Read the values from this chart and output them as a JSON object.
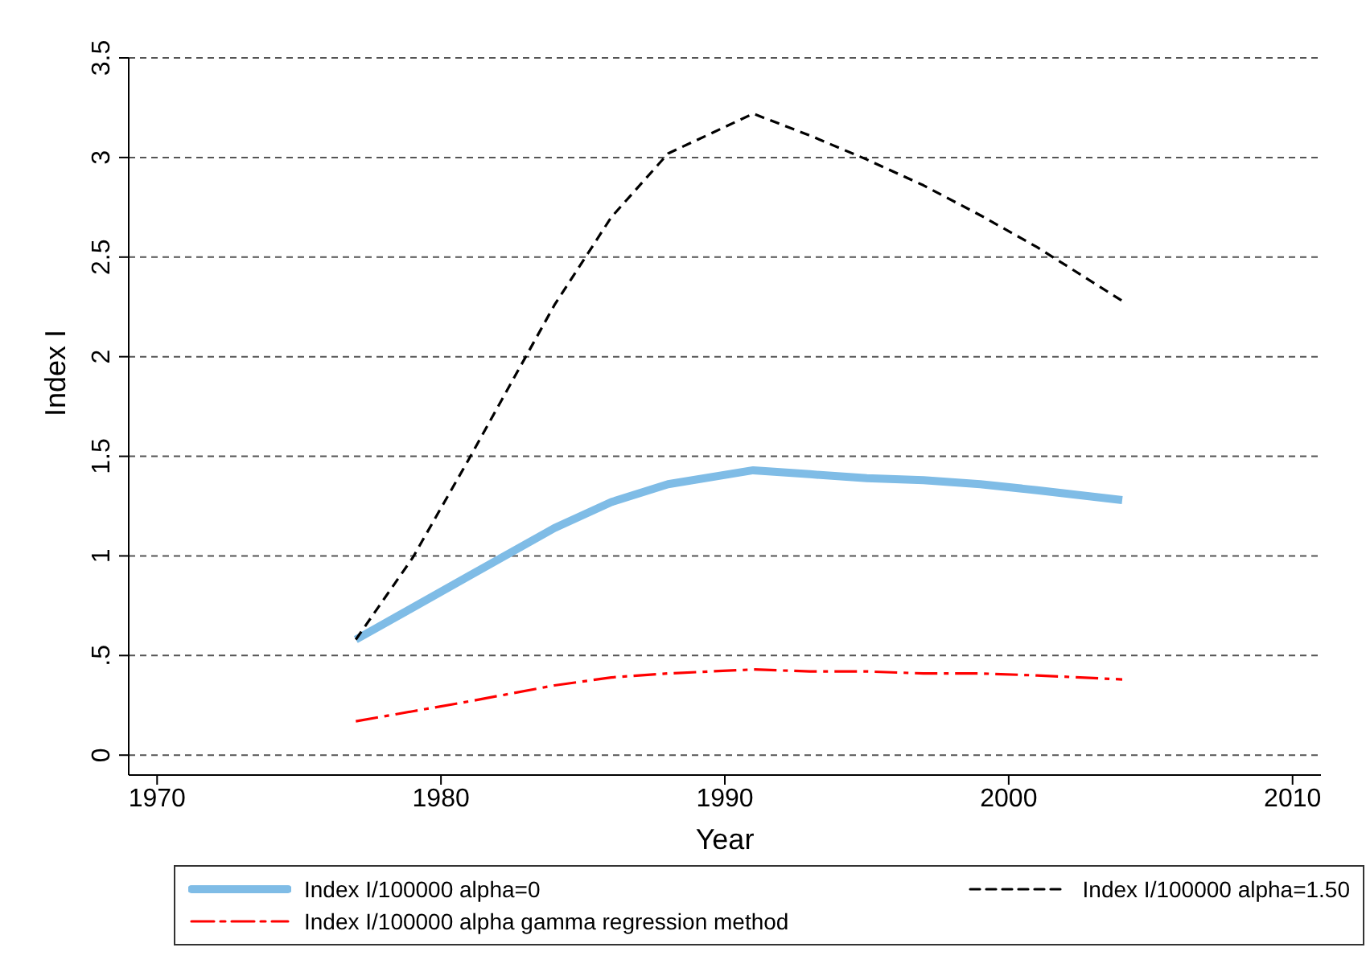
{
  "chart_data": {
    "type": "line",
    "xlabel": "Year",
    "ylabel": "Index I",
    "x": [
      1977,
      1979,
      1981,
      1984,
      1986,
      1988,
      1991,
      1993,
      1995,
      1997,
      1999,
      2001,
      2004
    ],
    "series": [
      {
        "name": "Index I/100000 alpha=0",
        "color": "#7fbce6",
        "line_style": "solid",
        "values": [
          0.58,
          0.74,
          0.9,
          1.14,
          1.27,
          1.36,
          1.43,
          1.41,
          1.39,
          1.38,
          1.36,
          1.33,
          1.28
        ]
      },
      {
        "name": "Index I/100000 alpha=1.50",
        "color": "#000000",
        "line_style": "dashed",
        "values": [
          0.58,
          0.99,
          1.49,
          2.26,
          2.7,
          3.02,
          3.22,
          3.11,
          2.99,
          2.86,
          2.71,
          2.55,
          2.28
        ]
      },
      {
        "name": "Index I/100000 alpha gamma regression method",
        "color": "#ff0000",
        "line_style": "dashed",
        "values": [
          0.17,
          0.22,
          0.27,
          0.35,
          0.39,
          0.41,
          0.43,
          0.42,
          0.42,
          0.41,
          0.41,
          0.4,
          0.38
        ]
      }
    ],
    "xlim": [
      1969,
      2011
    ],
    "xticks": [
      1970,
      1980,
      1990,
      2000,
      2010
    ],
    "ylim": [
      -0.1,
      3.5
    ],
    "yticks": [
      0,
      {
        "value": 0.5,
        "label": ".5"
      },
      1,
      1.5,
      2,
      2.5,
      3,
      3.5
    ],
    "grid": "y",
    "legend": "bottom",
    "marker": "none"
  }
}
